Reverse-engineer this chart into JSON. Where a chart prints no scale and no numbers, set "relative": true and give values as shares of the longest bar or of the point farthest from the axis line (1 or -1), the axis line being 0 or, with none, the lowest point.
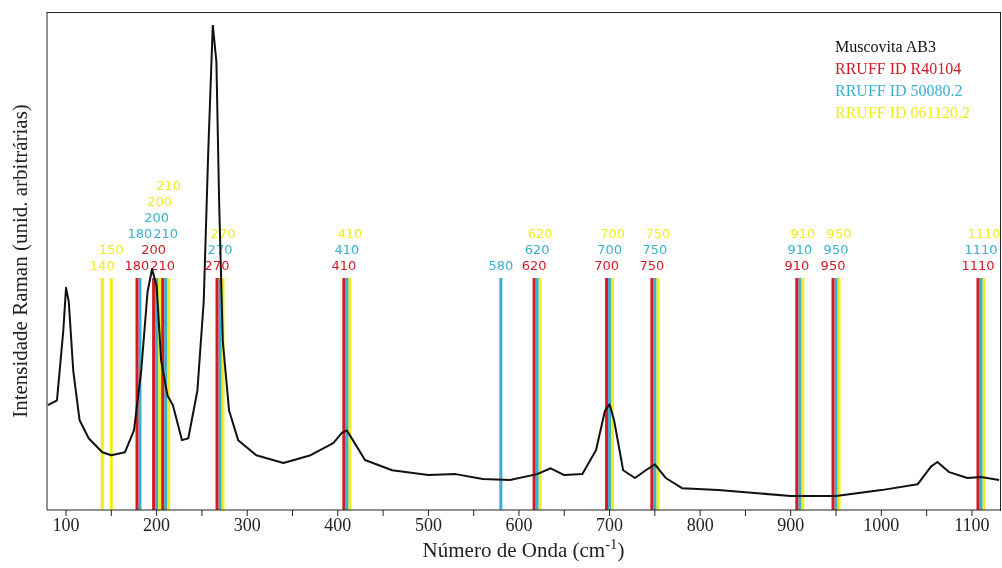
{
  "chart_data": {
    "type": "line",
    "xlabel": "Número de Onda (cm$^{-1}$)",
    "ylabel": "Intensidade Raman (unid. arbitrárias)",
    "relative": true,
    "legend": "top right",
    "xlim": [
      79,
      1131
    ],
    "xticks": [
      100,
      {
        "value": 150,
        "label": null
      },
      200,
      {
        "value": 250,
        "label": null
      },
      300,
      {
        "value": 350,
        "label": null
      },
      400,
      {
        "value": 450,
        "label": null
      },
      500,
      {
        "value": 550,
        "label": null
      },
      600,
      {
        "value": 650,
        "label": null
      },
      700,
      {
        "value": 750,
        "label": null
      },
      800,
      {
        "value": 850,
        "label": null
      },
      900,
      {
        "value": 950,
        "label": null
      },
      1000,
      {
        "value": 1050,
        "label": null
      },
      1100
    ],
    "series": [
      {
        "name": "Muscovita AB3",
        "color": "#111111",
        "x": [
          80,
          90,
          97,
          100,
          103,
          108,
          115,
          125,
          140,
          150,
          165,
          175,
          183,
          190,
          195,
          200,
          205,
          212,
          218,
          228,
          235,
          245,
          252,
          257,
          262,
          266,
          269,
          273,
          280,
          290,
          310,
          340,
          370,
          395,
          405,
          410,
          418,
          430,
          460,
          500,
          530,
          560,
          590,
          620,
          635,
          650,
          670,
          685,
          695,
          700,
          705,
          715,
          728,
          740,
          750,
          762,
          780,
          820,
          860,
          900,
          950,
          1000,
          1040,
          1055,
          1062,
          1075,
          1095,
          1110,
          1130
        ],
        "values": [
          0.216,
          0.226,
          0.37,
          0.458,
          0.43,
          0.287,
          0.185,
          0.148,
          0.119,
          0.113,
          0.119,
          0.164,
          0.287,
          0.45,
          0.497,
          0.462,
          0.308,
          0.236,
          0.216,
          0.144,
          0.148,
          0.246,
          0.43,
          0.739,
          1.0,
          0.924,
          0.637,
          0.349,
          0.205,
          0.144,
          0.113,
          0.097,
          0.113,
          0.138,
          0.16,
          0.164,
          0.14,
          0.103,
          0.082,
          0.072,
          0.074,
          0.064,
          0.062,
          0.074,
          0.086,
          0.072,
          0.074,
          0.123,
          0.205,
          0.218,
          0.185,
          0.082,
          0.066,
          0.082,
          0.094,
          0.066,
          0.045,
          0.041,
          0.035,
          0.029,
          0.029,
          0.041,
          0.053,
          0.09,
          0.099,
          0.078,
          0.066,
          0.068,
          0.062
        ]
      }
    ],
    "annotations": [
      "RRUFF ID R40104",
      "RRUFF ID 50080.2",
      "RRUFF ID 061120.2"
    ],
    "ref_lines": [
      {
        "axis": "x",
        "value": 180,
        "label": "180",
        "color": "#d01c24"
      },
      {
        "axis": "x",
        "value": 200,
        "label": "200",
        "color": "#d01c24"
      },
      {
        "axis": "x",
        "value": 210,
        "label": "210",
        "color": "#d01c24"
      },
      {
        "axis": "x",
        "value": 270,
        "label": "270",
        "color": "#d01c24"
      },
      {
        "axis": "x",
        "value": 410,
        "label": "410",
        "color": "#d01c24"
      },
      {
        "axis": "x",
        "value": 620,
        "label": "620",
        "color": "#d01c24"
      },
      {
        "axis": "x",
        "value": 700,
        "label": "700",
        "color": "#d01c24"
      },
      {
        "axis": "x",
        "value": 750,
        "label": "750",
        "color": "#d01c24"
      },
      {
        "axis": "x",
        "value": 910,
        "label": "910",
        "color": "#d01c24"
      },
      {
        "axis": "x",
        "value": 950,
        "label": "950",
        "color": "#d01c24"
      },
      {
        "axis": "x",
        "value": 1110,
        "label": "1110",
        "color": "#d01c24"
      },
      {
        "axis": "x",
        "value": 180,
        "label": "180",
        "color": "#3ab0d0"
      },
      {
        "axis": "x",
        "value": 200,
        "label": "200",
        "color": "#3ab0d0"
      },
      {
        "axis": "x",
        "value": 210,
        "label": "210",
        "color": "#3ab0d0"
      },
      {
        "axis": "x",
        "value": 270,
        "label": "270",
        "color": "#3ab0d0"
      },
      {
        "axis": "x",
        "value": 410,
        "label": "410",
        "color": "#3ab0d0"
      },
      {
        "axis": "x",
        "value": 580,
        "label": "580",
        "color": "#3ab0d0"
      },
      {
        "axis": "x",
        "value": 620,
        "label": "620",
        "color": "#3ab0d0"
      },
      {
        "axis": "x",
        "value": 700,
        "label": "700",
        "color": "#3ab0d0"
      },
      {
        "axis": "x",
        "value": 750,
        "label": "750",
        "color": "#3ab0d0"
      },
      {
        "axis": "x",
        "value": 910,
        "label": "910",
        "color": "#3ab0d0"
      },
      {
        "axis": "x",
        "value": 950,
        "label": "950",
        "color": "#3ab0d0"
      },
      {
        "axis": "x",
        "value": 1110,
        "label": "1110",
        "color": "#3ab0d0"
      },
      {
        "axis": "x",
        "value": 140,
        "label": "140",
        "color": "#f2ec1c"
      },
      {
        "axis": "x",
        "value": 150,
        "label": "150",
        "color": "#f2ec1c"
      },
      {
        "axis": "x",
        "value": 200,
        "label": "200",
        "color": "#f2ec1c"
      },
      {
        "axis": "x",
        "value": 210,
        "label": "210",
        "color": "#f2ec1c"
      },
      {
        "axis": "x",
        "value": 270,
        "label": "270",
        "color": "#f2ec1c"
      },
      {
        "axis": "x",
        "value": 410,
        "label": "410",
        "color": "#f2ec1c"
      },
      {
        "axis": "x",
        "value": 620,
        "label": "620",
        "color": "#f2ec1c"
      },
      {
        "axis": "x",
        "value": 700,
        "label": "700",
        "color": "#f2ec1c"
      },
      {
        "axis": "x",
        "value": 750,
        "label": "750",
        "color": "#f2ec1c"
      },
      {
        "axis": "x",
        "value": 910,
        "label": "910",
        "color": "#f2ec1c"
      },
      {
        "axis": "x",
        "value": 950,
        "label": "950",
        "color": "#f2ec1c"
      },
      {
        "axis": "x",
        "value": 1110,
        "label": "1110",
        "color": "#f2ec1c"
      }
    ]
  }
}
